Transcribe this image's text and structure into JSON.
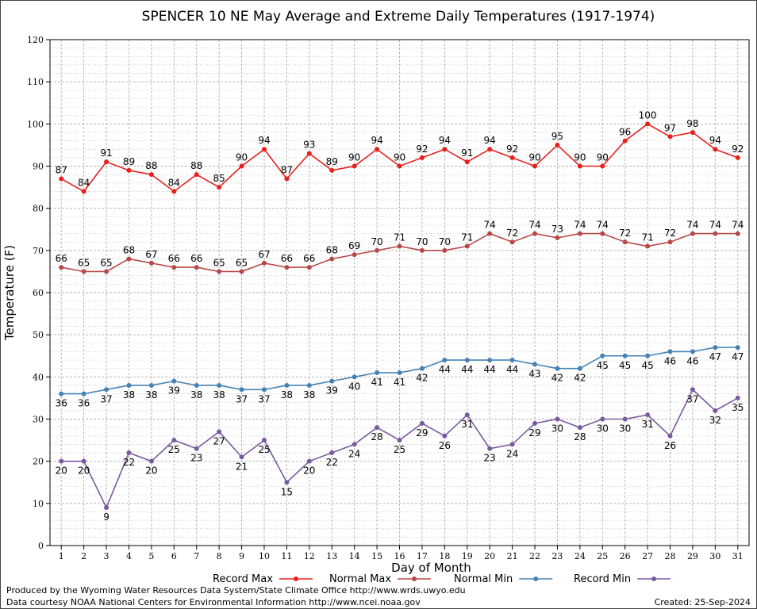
{
  "chart_data": {
    "type": "line",
    "title": "SPENCER 10 NE May Average and Extreme Daily Temperatures (1917-1974)",
    "xlabel": "Day of Month",
    "ylabel": "Temperature (F)",
    "ylim": [
      0,
      120
    ],
    "yticks": [
      0,
      10,
      20,
      30,
      40,
      50,
      60,
      70,
      80,
      90,
      100,
      110,
      120
    ],
    "grid": true,
    "legend_position": "bottom",
    "x": [
      1,
      2,
      3,
      4,
      5,
      6,
      7,
      8,
      9,
      10,
      11,
      12,
      13,
      14,
      15,
      16,
      17,
      18,
      19,
      20,
      21,
      22,
      23,
      24,
      25,
      26,
      27,
      28,
      29,
      30,
      31
    ],
    "series": [
      {
        "name": "Record Max",
        "color": "#e8201c",
        "label_pos": "above",
        "values": [
          87,
          84,
          91,
          89,
          88,
          84,
          88,
          85,
          90,
          94,
          87,
          93,
          89,
          90,
          94,
          90,
          92,
          94,
          91,
          94,
          92,
          90,
          95,
          90,
          90,
          96,
          100,
          97,
          98,
          94,
          92
        ]
      },
      {
        "name": "Normal Max",
        "color": "#b84848",
        "label_pos": "above",
        "values": [
          66,
          65,
          65,
          68,
          67,
          66,
          66,
          65,
          65,
          67,
          66,
          66,
          68,
          69,
          70,
          71,
          70,
          70,
          71,
          74,
          72,
          74,
          73,
          74,
          74,
          72,
          71,
          72,
          74,
          74,
          74
        ]
      },
      {
        "name": "Normal Min",
        "color": "#4682b4",
        "label_pos": "below",
        "values": [
          36,
          36,
          37,
          38,
          38,
          39,
          38,
          38,
          37,
          37,
          38,
          38,
          39,
          40,
          41,
          41,
          42,
          44,
          44,
          44,
          44,
          43,
          42,
          42,
          45,
          45,
          45,
          46,
          46,
          47,
          47
        ]
      },
      {
        "name": "Record Min",
        "color": "#7a5a9e",
        "label_pos": "below",
        "values": [
          20,
          20,
          9,
          22,
          20,
          25,
          23,
          27,
          21,
          25,
          15,
          20,
          22,
          24,
          28,
          25,
          29,
          26,
          31,
          23,
          24,
          29,
          30,
          28,
          30,
          30,
          31,
          26,
          37,
          32,
          35
        ]
      }
    ]
  },
  "footer": {
    "produced_by": "Produced by the Wyoming Water Resources Data System/State Climate Office http://www.wrds.uwyo.edu",
    "courtesy": "Data courtesy NOAA National Centers for Environmental Information http://www.ncei.noaa.gov",
    "created": "Created:  25-Sep-2024"
  }
}
